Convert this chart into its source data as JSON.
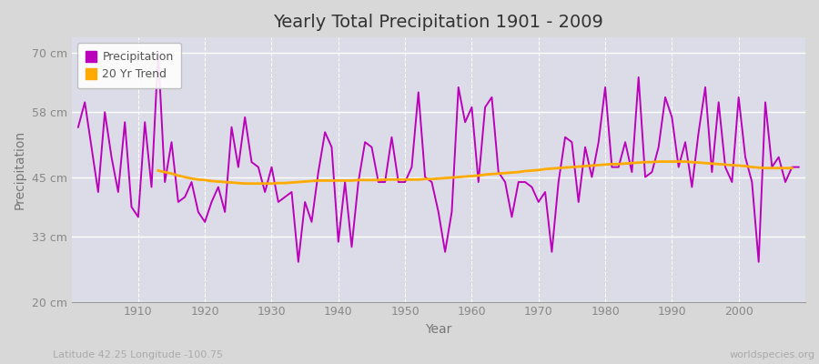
{
  "title": "Yearly Total Precipitation 1901 - 2009",
  "xlabel": "Year",
  "ylabel": "Precipitation",
  "bg_color": "#d8d8d8",
  "plot_bg_color": "#dcdce8",
  "precipitation_color": "#bb00bb",
  "trend_color": "#ffaa00",
  "yticks": [
    20,
    33,
    45,
    58,
    70
  ],
  "ytick_labels": [
    "20 cm",
    "33 cm",
    "45 cm",
    "58 cm",
    "70 cm"
  ],
  "ylim": [
    20,
    73
  ],
  "xlim": [
    1900,
    2010
  ],
  "footnote_left": "Latitude 42.25 Longitude -100.75",
  "footnote_right": "worldspecies.org",
  "years": [
    1901,
    1902,
    1903,
    1904,
    1905,
    1906,
    1907,
    1908,
    1909,
    1910,
    1911,
    1912,
    1913,
    1914,
    1915,
    1916,
    1917,
    1918,
    1919,
    1920,
    1921,
    1922,
    1923,
    1924,
    1925,
    1926,
    1927,
    1928,
    1929,
    1930,
    1931,
    1932,
    1933,
    1934,
    1935,
    1936,
    1937,
    1938,
    1939,
    1940,
    1941,
    1942,
    1943,
    1944,
    1945,
    1946,
    1947,
    1948,
    1949,
    1950,
    1951,
    1952,
    1953,
    1954,
    1955,
    1956,
    1957,
    1958,
    1959,
    1960,
    1961,
    1962,
    1963,
    1964,
    1965,
    1966,
    1967,
    1968,
    1969,
    1970,
    1971,
    1972,
    1973,
    1974,
    1975,
    1976,
    1977,
    1978,
    1979,
    1980,
    1981,
    1982,
    1983,
    1984,
    1985,
    1986,
    1987,
    1988,
    1989,
    1990,
    1991,
    1992,
    1993,
    1994,
    1995,
    1996,
    1997,
    1998,
    1999,
    2000,
    2001,
    2002,
    2003,
    2004,
    2005,
    2006,
    2007,
    2008,
    2009
  ],
  "precip": [
    55,
    60,
    51,
    42,
    58,
    49,
    42,
    56,
    39,
    37,
    56,
    43,
    70,
    44,
    52,
    40,
    41,
    44,
    38,
    36,
    40,
    43,
    38,
    55,
    47,
    57,
    48,
    47,
    42,
    47,
    40,
    41,
    42,
    28,
    40,
    36,
    46,
    54,
    51,
    32,
    44,
    31,
    44,
    52,
    51,
    44,
    44,
    53,
    44,
    44,
    47,
    62,
    45,
    44,
    38,
    30,
    38,
    63,
    56,
    59,
    44,
    59,
    61,
    46,
    44,
    37,
    44,
    44,
    43,
    40,
    42,
    30,
    44,
    53,
    52,
    40,
    51,
    45,
    52,
    63,
    47,
    47,
    52,
    46,
    65,
    45,
    46,
    51,
    61,
    57,
    47,
    52,
    43,
    54,
    63,
    46,
    60,
    47,
    44,
    61,
    49,
    44,
    28,
    60,
    47,
    49,
    44,
    47,
    47
  ],
  "trend_start_year": 1913,
  "trend": [
    46.3,
    46.0,
    45.7,
    45.3,
    45.0,
    44.7,
    44.5,
    44.4,
    44.2,
    44.1,
    44.0,
    43.9,
    43.8,
    43.7,
    43.7,
    43.7,
    43.7,
    43.7,
    43.8,
    43.8,
    43.9,
    44.0,
    44.1,
    44.2,
    44.3,
    44.3,
    44.3,
    44.3,
    44.3,
    44.3,
    44.4,
    44.4,
    44.4,
    44.4,
    44.5,
    44.5,
    44.5,
    44.5,
    44.5,
    44.5,
    44.6,
    44.6,
    44.7,
    44.8,
    44.9,
    45.0,
    45.1,
    45.2,
    45.3,
    45.5,
    45.6,
    45.7,
    45.8,
    45.9,
    46.0,
    46.2,
    46.3,
    46.4,
    46.6,
    46.7,
    46.8,
    46.9,
    47.0,
    47.1,
    47.2,
    47.3,
    47.4,
    47.5,
    47.6,
    47.6,
    47.7,
    47.8,
    47.9,
    48.0,
    48.0,
    48.1,
    48.1,
    48.1,
    48.1,
    48.1,
    48.0,
    47.9,
    47.8,
    47.7,
    47.6,
    47.5,
    47.4,
    47.3,
    47.2,
    47.0,
    46.9,
    46.8,
    46.8,
    46.8,
    46.8,
    46.8
  ]
}
